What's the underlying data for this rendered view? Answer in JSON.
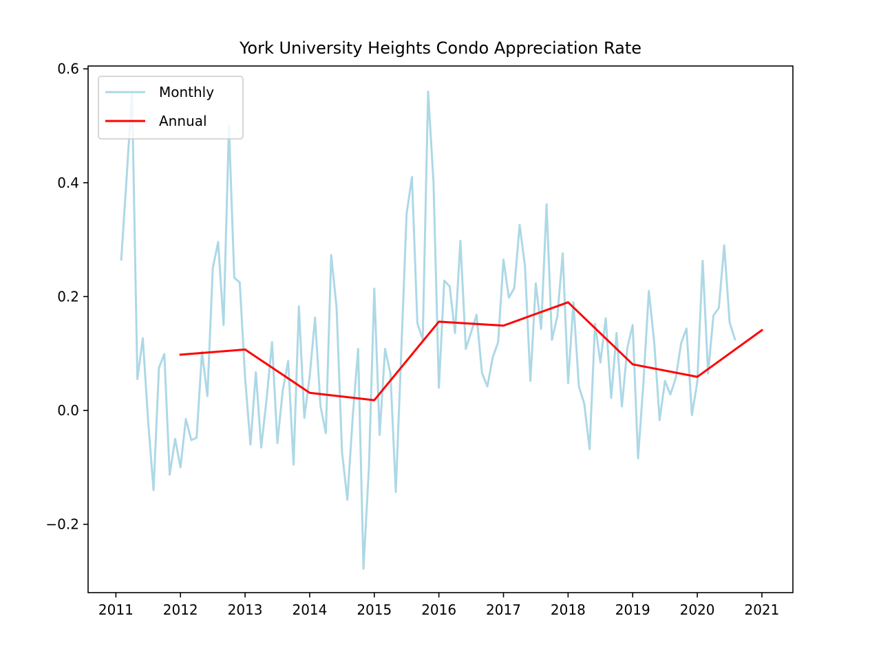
{
  "chart_data": {
    "type": "line",
    "title": "York University Heights Condo Appreciation Rate",
    "xlabel": "",
    "ylabel": "",
    "xlim": [
      2010.57,
      2021.48
    ],
    "ylim": [
      -0.32,
      0.605
    ],
    "x_ticks": [
      2011,
      2012,
      2013,
      2014,
      2015,
      2016,
      2017,
      2018,
      2019,
      2020,
      2021
    ],
    "x_tick_labels": [
      "2011",
      "2012",
      "2013",
      "2014",
      "2015",
      "2016",
      "2017",
      "2018",
      "2019",
      "2020",
      "2021"
    ],
    "y_ticks": [
      -0.2,
      0.0,
      0.2,
      0.4,
      0.6
    ],
    "y_tick_labels": [
      "−0.2",
      "0.0",
      "0.2",
      "0.4",
      "0.6"
    ],
    "grid": false,
    "legend_position": "top-left",
    "series": [
      {
        "name": "Monthly",
        "color": "#add8e6",
        "points": [
          [
            2011.083,
            0.265
          ],
          [
            2011.167,
            0.41
          ],
          [
            2011.25,
            0.56
          ],
          [
            2011.333,
            0.055
          ],
          [
            2011.417,
            0.127
          ],
          [
            2011.5,
            -0.02
          ],
          [
            2011.583,
            -0.14
          ],
          [
            2011.667,
            0.075
          ],
          [
            2011.75,
            0.099
          ],
          [
            2011.833,
            -0.113
          ],
          [
            2011.917,
            -0.05
          ],
          [
            2012.0,
            -0.1
          ],
          [
            2012.083,
            -0.015
          ],
          [
            2012.167,
            -0.052
          ],
          [
            2012.25,
            -0.048
          ],
          [
            2012.333,
            0.103
          ],
          [
            2012.417,
            0.025
          ],
          [
            2012.5,
            0.25
          ],
          [
            2012.583,
            0.296
          ],
          [
            2012.667,
            0.15
          ],
          [
            2012.75,
            0.5
          ],
          [
            2012.833,
            0.233
          ],
          [
            2012.917,
            0.225
          ],
          [
            2013.0,
            0.058
          ],
          [
            2013.083,
            -0.06
          ],
          [
            2013.167,
            0.067
          ],
          [
            2013.25,
            -0.065
          ],
          [
            2013.333,
            0.02
          ],
          [
            2013.417,
            0.12
          ],
          [
            2013.5,
            -0.057
          ],
          [
            2013.583,
            0.035
          ],
          [
            2013.667,
            0.087
          ],
          [
            2013.75,
            -0.095
          ],
          [
            2013.833,
            0.183
          ],
          [
            2013.917,
            -0.013
          ],
          [
            2014.0,
            0.06
          ],
          [
            2014.083,
            0.163
          ],
          [
            2014.167,
            0.008
          ],
          [
            2014.25,
            -0.04
          ],
          [
            2014.333,
            0.273
          ],
          [
            2014.417,
            0.18
          ],
          [
            2014.5,
            -0.072
          ],
          [
            2014.583,
            -0.157
          ],
          [
            2014.667,
            -0.01
          ],
          [
            2014.75,
            0.108
          ],
          [
            2014.833,
            -0.278
          ],
          [
            2014.917,
            -0.1
          ],
          [
            2015.0,
            0.214
          ],
          [
            2015.083,
            -0.043
          ],
          [
            2015.167,
            0.108
          ],
          [
            2015.25,
            0.065
          ],
          [
            2015.333,
            -0.143
          ],
          [
            2015.417,
            0.1
          ],
          [
            2015.5,
            0.345
          ],
          [
            2015.583,
            0.41
          ],
          [
            2015.667,
            0.153
          ],
          [
            2015.75,
            0.125
          ],
          [
            2015.833,
            0.56
          ],
          [
            2015.917,
            0.4
          ],
          [
            2016.0,
            0.04
          ],
          [
            2016.083,
            0.228
          ],
          [
            2016.167,
            0.218
          ],
          [
            2016.25,
            0.136
          ],
          [
            2016.333,
            0.298
          ],
          [
            2016.417,
            0.108
          ],
          [
            2016.5,
            0.138
          ],
          [
            2016.583,
            0.168
          ],
          [
            2016.667,
            0.066
          ],
          [
            2016.75,
            0.042
          ],
          [
            2016.833,
            0.093
          ],
          [
            2016.917,
            0.12
          ],
          [
            2017.0,
            0.265
          ],
          [
            2017.083,
            0.198
          ],
          [
            2017.167,
            0.215
          ],
          [
            2017.25,
            0.326
          ],
          [
            2017.333,
            0.253
          ],
          [
            2017.417,
            0.052
          ],
          [
            2017.5,
            0.223
          ],
          [
            2017.583,
            0.143
          ],
          [
            2017.667,
            0.362
          ],
          [
            2017.75,
            0.124
          ],
          [
            2017.833,
            0.165
          ],
          [
            2017.917,
            0.276
          ],
          [
            2018.0,
            0.048
          ],
          [
            2018.083,
            0.19
          ],
          [
            2018.167,
            0.042
          ],
          [
            2018.25,
            0.012
          ],
          [
            2018.333,
            -0.068
          ],
          [
            2018.417,
            0.152
          ],
          [
            2018.5,
            0.084
          ],
          [
            2018.583,
            0.162
          ],
          [
            2018.667,
            0.022
          ],
          [
            2018.75,
            0.136
          ],
          [
            2018.833,
            0.007
          ],
          [
            2018.917,
            0.11
          ],
          [
            2019.0,
            0.15
          ],
          [
            2019.083,
            -0.084
          ],
          [
            2019.167,
            0.05
          ],
          [
            2019.25,
            0.21
          ],
          [
            2019.333,
            0.12
          ],
          [
            2019.417,
            -0.017
          ],
          [
            2019.5,
            0.052
          ],
          [
            2019.583,
            0.028
          ],
          [
            2019.667,
            0.057
          ],
          [
            2019.75,
            0.118
          ],
          [
            2019.833,
            0.144
          ],
          [
            2019.917,
            -0.008
          ],
          [
            2020.0,
            0.05
          ],
          [
            2020.083,
            0.263
          ],
          [
            2020.167,
            0.065
          ],
          [
            2020.25,
            0.167
          ],
          [
            2020.333,
            0.18
          ],
          [
            2020.417,
            0.29
          ],
          [
            2020.5,
            0.155
          ],
          [
            2020.583,
            0.125
          ]
        ]
      },
      {
        "name": "Annual",
        "color": "#ff0000",
        "points": [
          [
            2012,
            0.098
          ],
          [
            2013,
            0.107
          ],
          [
            2014,
            0.031
          ],
          [
            2015,
            0.018
          ],
          [
            2016,
            0.156
          ],
          [
            2017,
            0.149
          ],
          [
            2018,
            0.19
          ],
          [
            2019,
            0.081
          ],
          [
            2020,
            0.059
          ],
          [
            2021,
            0.141
          ]
        ]
      }
    ]
  }
}
